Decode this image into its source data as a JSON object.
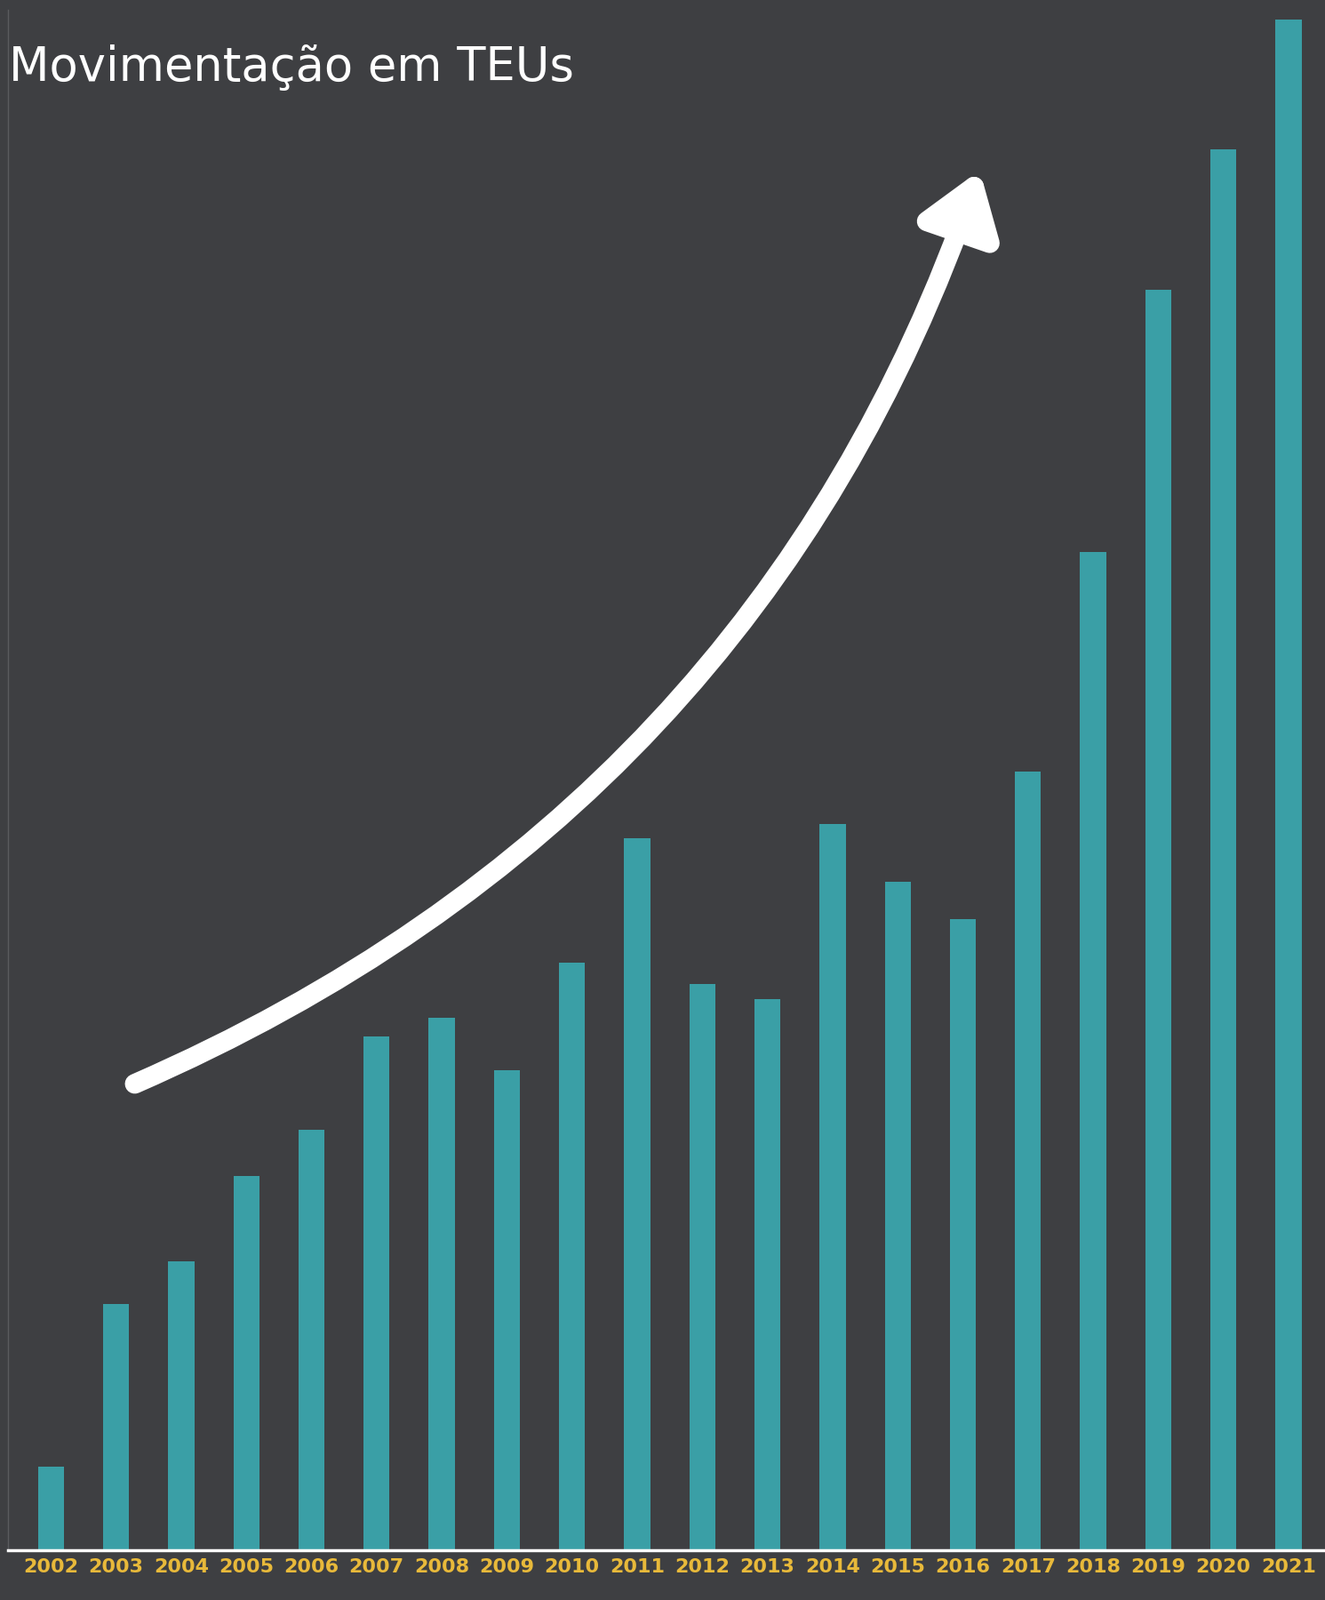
{
  "chart_data": {
    "type": "bar",
    "title": "Movimentação em TEUs",
    "categories": [
      "2002",
      "2003",
      "2004",
      "2005",
      "2006",
      "2007",
      "2008",
      "2009",
      "2010",
      "2011",
      "2012",
      "2013",
      "2014",
      "2015",
      "2016",
      "2017",
      "2018",
      "2019",
      "2020",
      "2021"
    ],
    "values": [
      83,
      243,
      285,
      369,
      415,
      507,
      525,
      474,
      580,
      703,
      559,
      544,
      717,
      660,
      623,
      768,
      985,
      1244,
      1382,
      1510
    ],
    "color": "#3a9fa6",
    "ylim": [
      0,
      1520
    ],
    "grid": false,
    "data_labels": false,
    "tick_labels": "x"
  }
}
